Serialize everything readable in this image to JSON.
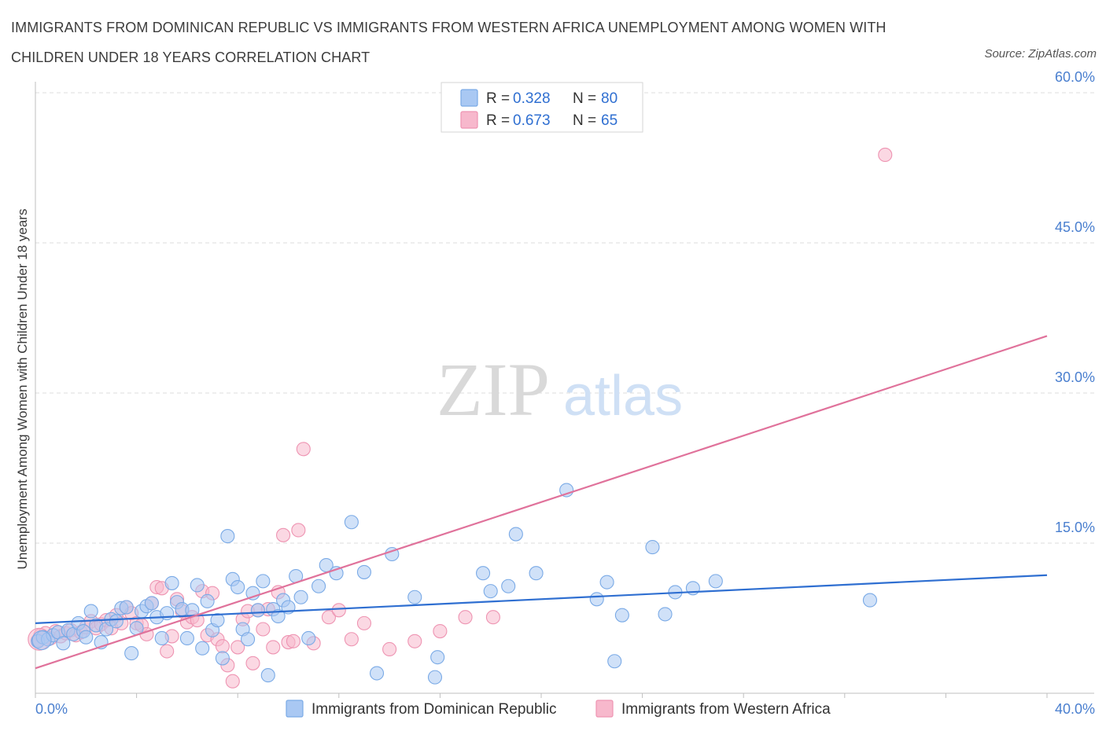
{
  "header": {
    "title": "IMMIGRANTS FROM DOMINICAN REPUBLIC VS IMMIGRANTS FROM WESTERN AFRICA UNEMPLOYMENT AMONG WOMEN WITH CHILDREN UNDER 18 YEARS CORRELATION CHART",
    "source": "Source: ZipAtlas.com"
  },
  "watermark": {
    "zip": "ZIP",
    "atlas": "atlas"
  },
  "legend": {
    "r_label": "R =",
    "n_label": "N =",
    "rows": [
      {
        "r": "0.328",
        "n": "80",
        "color": "#a9c8f3"
      },
      {
        "r": "0.673",
        "n": "65",
        "color": "#f7b8cc"
      }
    ]
  },
  "bottom_legend": [
    {
      "label": "Immigrants from Dominican Republic",
      "color": "#a9c8f3"
    },
    {
      "label": "Immigrants from Western Africa",
      "color": "#f7b8cc"
    }
  ],
  "colors": {
    "blue_fill": "#a9c8f3",
    "blue_stroke": "#7aaae6",
    "blue_line": "#2f6fd1",
    "pink_fill": "#f7b8cc",
    "pink_stroke": "#ee94b2",
    "pink_line": "#e0729b",
    "grid": "#dddddd",
    "axis_text": "#4a7fcf"
  },
  "chart_data": {
    "type": "scatter",
    "title": "IMMIGRANTS FROM DOMINICAN REPUBLIC VS IMMIGRANTS FROM WESTERN AFRICA UNEMPLOYMENT AMONG WOMEN WITH CHILDREN UNDER 18 YEARS CORRELATION CHART",
    "xlabel": "",
    "ylabel": "Unemployment Among Women with Children Under 18 years",
    "xlim": [
      0,
      40
    ],
    "ylim": [
      0,
      60
    ],
    "x_tick_labels": [
      "0.0%",
      "40.0%"
    ],
    "y_ticks": [
      15,
      30,
      45,
      60
    ],
    "y_tick_labels": [
      "15.0%",
      "30.0%",
      "45.0%",
      "60.0%"
    ],
    "grid": "horizontal dashed",
    "legend_position": "top-center",
    "series": [
      {
        "name": "Immigrants from Dominican Republic",
        "color": "#a9c8f3",
        "trend": {
          "x": [
            0,
            40
          ],
          "y": [
            7.0,
            11.8
          ],
          "color": "#2f6fd1"
        },
        "points": [
          [
            0.1,
            5.2
          ],
          [
            0.3,
            5.6
          ],
          [
            0.5,
            5.4
          ],
          [
            0.7,
            5.8
          ],
          [
            0.9,
            6.1
          ],
          [
            1.1,
            5.0
          ],
          [
            1.3,
            6.3
          ],
          [
            1.5,
            5.9
          ],
          [
            1.7,
            7.0
          ],
          [
            1.9,
            6.2
          ],
          [
            2.0,
            5.6
          ],
          [
            2.2,
            8.2
          ],
          [
            2.4,
            6.8
          ],
          [
            2.6,
            5.1
          ],
          [
            2.8,
            6.4
          ],
          [
            3.0,
            7.4
          ],
          [
            3.2,
            7.2
          ],
          [
            3.4,
            8.5
          ],
          [
            3.6,
            8.6
          ],
          [
            3.8,
            4.0
          ],
          [
            4.0,
            6.5
          ],
          [
            4.2,
            8.2
          ],
          [
            4.4,
            8.7
          ],
          [
            4.6,
            9.0
          ],
          [
            4.8,
            7.6
          ],
          [
            5.0,
            5.5
          ],
          [
            5.2,
            8.0
          ],
          [
            5.4,
            11.0
          ],
          [
            5.6,
            9.1
          ],
          [
            5.8,
            8.4
          ],
          [
            6.0,
            5.5
          ],
          [
            6.2,
            8.3
          ],
          [
            6.4,
            10.8
          ],
          [
            6.6,
            4.5
          ],
          [
            6.8,
            9.2
          ],
          [
            7.0,
            6.3
          ],
          [
            7.2,
            7.3
          ],
          [
            7.4,
            3.5
          ],
          [
            7.6,
            15.7
          ],
          [
            7.8,
            11.4
          ],
          [
            8.0,
            10.6
          ],
          [
            8.2,
            6.4
          ],
          [
            8.4,
            5.4
          ],
          [
            8.6,
            10.0
          ],
          [
            8.8,
            8.3
          ],
          [
            9.0,
            11.2
          ],
          [
            9.2,
            1.8
          ],
          [
            9.4,
            8.4
          ],
          [
            9.6,
            7.7
          ],
          [
            9.8,
            9.3
          ],
          [
            10.0,
            8.6
          ],
          [
            10.3,
            11.7
          ],
          [
            10.5,
            9.6
          ],
          [
            10.8,
            5.5
          ],
          [
            11.2,
            10.7
          ],
          [
            11.5,
            12.8
          ],
          [
            11.9,
            12.0
          ],
          [
            12.5,
            17.1
          ],
          [
            13.0,
            12.1
          ],
          [
            13.5,
            2.0
          ],
          [
            14.1,
            13.9
          ],
          [
            15.0,
            9.6
          ],
          [
            15.9,
            3.6
          ],
          [
            15.8,
            1.6
          ],
          [
            17.7,
            12.0
          ],
          [
            18.0,
            10.2
          ],
          [
            18.7,
            10.7
          ],
          [
            19.0,
            15.9
          ],
          [
            19.8,
            12.0
          ],
          [
            21.0,
            20.3
          ],
          [
            22.2,
            9.4
          ],
          [
            22.6,
            11.1
          ],
          [
            22.9,
            3.2
          ],
          [
            23.2,
            7.8
          ],
          [
            24.4,
            14.6
          ],
          [
            24.9,
            7.9
          ],
          [
            25.3,
            10.1
          ],
          [
            26.0,
            10.5
          ],
          [
            26.9,
            11.2
          ],
          [
            33.0,
            9.3
          ]
        ]
      },
      {
        "name": "Immigrants from Western Africa",
        "color": "#f7b8cc",
        "trend": {
          "x": [
            0,
            40
          ],
          "y": [
            2.5,
            35.7
          ],
          "color": "#e0729b"
        },
        "points": [
          [
            0.1,
            5.3
          ],
          [
            0.2,
            5.8
          ],
          [
            0.4,
            6.0
          ],
          [
            0.6,
            5.5
          ],
          [
            0.8,
            6.2
          ],
          [
            1.0,
            5.7
          ],
          [
            1.2,
            6.0
          ],
          [
            1.4,
            6.3
          ],
          [
            1.6,
            5.8
          ],
          [
            1.8,
            6.1
          ],
          [
            2.0,
            6.6
          ],
          [
            2.2,
            7.2
          ],
          [
            2.4,
            6.5
          ],
          [
            2.6,
            6.9
          ],
          [
            2.8,
            7.3
          ],
          [
            3.0,
            6.5
          ],
          [
            3.2,
            7.8
          ],
          [
            3.4,
            7.0
          ],
          [
            3.6,
            8.6
          ],
          [
            3.8,
            8.0
          ],
          [
            4.0,
            7.0
          ],
          [
            4.2,
            6.8
          ],
          [
            4.4,
            5.9
          ],
          [
            4.6,
            9.0
          ],
          [
            4.8,
            10.6
          ],
          [
            5.0,
            10.5
          ],
          [
            5.2,
            4.2
          ],
          [
            5.4,
            5.7
          ],
          [
            5.6,
            9.4
          ],
          [
            5.8,
            8.2
          ],
          [
            6.0,
            7.1
          ],
          [
            6.2,
            7.6
          ],
          [
            6.4,
            7.3
          ],
          [
            6.6,
            10.2
          ],
          [
            6.8,
            5.8
          ],
          [
            7.0,
            10.0
          ],
          [
            7.2,
            5.4
          ],
          [
            7.4,
            4.7
          ],
          [
            7.6,
            2.8
          ],
          [
            7.8,
            1.2
          ],
          [
            8.0,
            4.6
          ],
          [
            8.2,
            7.4
          ],
          [
            8.4,
            8.2
          ],
          [
            8.6,
            3.0
          ],
          [
            8.8,
            8.3
          ],
          [
            9.0,
            6.4
          ],
          [
            9.2,
            8.4
          ],
          [
            9.4,
            4.6
          ],
          [
            9.6,
            10.1
          ],
          [
            9.8,
            15.8
          ],
          [
            10.0,
            5.1
          ],
          [
            10.2,
            5.2
          ],
          [
            10.4,
            16.3
          ],
          [
            10.6,
            24.4
          ],
          [
            11.0,
            5.0
          ],
          [
            11.6,
            7.6
          ],
          [
            12.0,
            8.3
          ],
          [
            12.5,
            5.4
          ],
          [
            13.0,
            7.0
          ],
          [
            14.0,
            4.4
          ],
          [
            15.0,
            5.2
          ],
          [
            16.0,
            6.2
          ],
          [
            17.0,
            7.6
          ],
          [
            18.1,
            7.6
          ],
          [
            33.6,
            53.8
          ]
        ]
      }
    ]
  }
}
